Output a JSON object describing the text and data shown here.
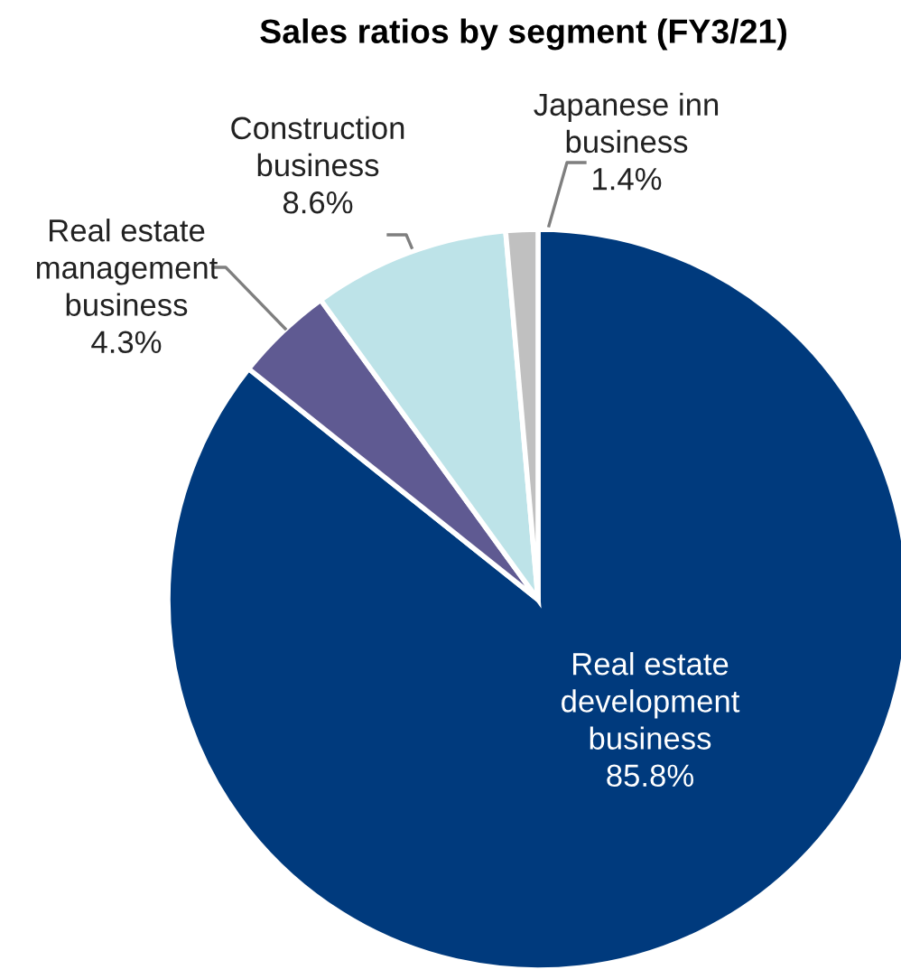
{
  "chart_data": {
    "type": "pie",
    "title": "Sales ratios by segment (FY3/21)",
    "categories": [
      "Real estate\ndevelopment\nbusiness",
      "Real estate\nmanagement\nbusiness",
      "Construction\nbusiness",
      "Japanese inn\nbusiness"
    ],
    "values": [
      85.8,
      4.3,
      8.6,
      1.4
    ],
    "colors": [
      "#003a7d",
      "#5f5a92",
      "#bde3e8",
      "#c0c0c0"
    ],
    "value_labels": [
      "85.8%",
      "4.3%",
      "8.6%",
      "1.4%"
    ]
  }
}
